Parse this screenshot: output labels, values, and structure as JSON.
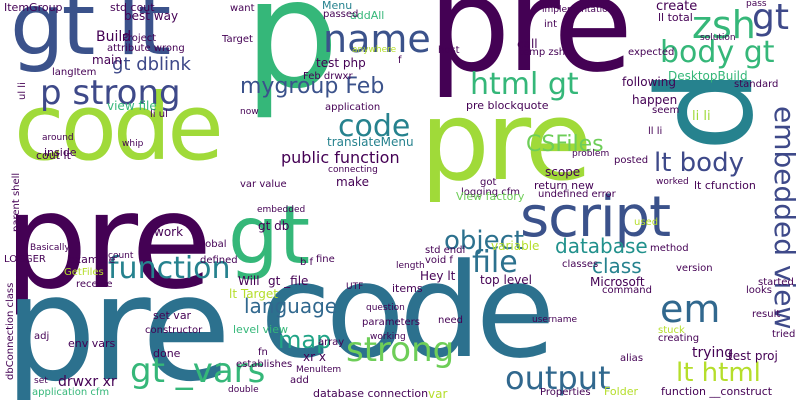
{
  "words": [
    {
      "text": "pre",
      "color": "#440154"
    },
    {
      "text": "code",
      "color": "#a0da39"
    },
    {
      "text": "pre",
      "color": "#a0da39"
    },
    {
      "text": "code",
      "color": "#2c718e"
    },
    {
      "text": "p",
      "color": "#35b779"
    },
    {
      "text": "p",
      "color": "#26828e"
    },
    {
      "text": "pre",
      "color": "#440154"
    },
    {
      "text": "pre",
      "color": "#2c718e"
    },
    {
      "text": "gt lt",
      "color": "#3b528b"
    },
    {
      "text": "gt",
      "color": "#35b779"
    },
    {
      "text": "name",
      "color": "#3b528b"
    },
    {
      "text": "zsh",
      "color": "#35b779"
    },
    {
      "text": "gt",
      "color": "#3e4989"
    },
    {
      "text": "script",
      "color": "#3b528b"
    },
    {
      "text": "code",
      "color": "#26828e"
    },
    {
      "text": "p strong",
      "color": "#3e4989"
    },
    {
      "text": "body gt",
      "color": "#35b779"
    },
    {
      "text": "html gt",
      "color": "#35b779"
    },
    {
      "text": "embedded view",
      "color": "#3e4989"
    },
    {
      "text": "lt body",
      "color": "#3e4989"
    },
    {
      "text": "strong",
      "color": "#6ece58"
    },
    {
      "text": "gt _vars",
      "color": "#35b779"
    },
    {
      "text": "em",
      "color": "#31688e"
    },
    {
      "text": "file",
      "color": "#2c718e"
    },
    {
      "text": "function",
      "color": "#26828e"
    },
    {
      "text": "object",
      "color": "#2c718e"
    },
    {
      "text": "output",
      "color": "#31688e"
    },
    {
      "text": "lt html",
      "color": "#b5de2b"
    },
    {
      "text": "CSFiles",
      "color": "#6ece58"
    },
    {
      "text": "mygroup Feb",
      "color": "#3b528b"
    },
    {
      "text": "map",
      "color": "#20a486"
    },
    {
      "text": "language",
      "color": "#31688e"
    },
    {
      "text": "database",
      "color": "#21918c"
    },
    {
      "text": "public function",
      "color": "#440154"
    },
    {
      "text": "class",
      "color": "#26828e"
    },
    {
      "text": "gt dblink",
      "color": "#3e4989"
    },
    {
      "text": "ItemGroup",
      "color": "#440154"
    },
    {
      "text": "best way",
      "color": "#440154"
    },
    {
      "text": "Build",
      "color": "#440154"
    },
    {
      "text": "main",
      "color": "#440154"
    },
    {
      "text": "test php",
      "color": "#440154"
    },
    {
      "text": "Menu",
      "color": "#26828e"
    },
    {
      "text": "create",
      "color": "#440154"
    },
    {
      "text": "ll total",
      "color": "#440154"
    },
    {
      "text": "translateMenu",
      "color": "#26828e"
    },
    {
      "text": "scope",
      "color": "#440154"
    },
    {
      "text": "make",
      "color": "#440154"
    },
    {
      "text": "Will",
      "color": "#440154"
    },
    {
      "text": "gt _file",
      "color": "#440154"
    },
    {
      "text": "lt Target",
      "color": "#b5de2b"
    },
    {
      "text": "level view",
      "color": "#35b779"
    },
    {
      "text": "set var",
      "color": "#440154"
    },
    {
      "text": "env vars",
      "color": "#440154"
    },
    {
      "text": "drwxr xr",
      "color": "#440154"
    },
    {
      "text": "trying",
      "color": "#440154"
    },
    {
      "text": "test proj",
      "color": "#440154"
    },
    {
      "text": "variable",
      "color": "#b5de2b"
    },
    {
      "text": "Hey lt",
      "color": "#440154"
    },
    {
      "text": "top level",
      "color": "#440154"
    },
    {
      "text": "items",
      "color": "#440154"
    },
    {
      "text": "return new",
      "color": "#440154"
    },
    {
      "text": "pre blockquote",
      "color": "#440154"
    },
    {
      "text": "application",
      "color": "#440154"
    },
    {
      "text": "view file",
      "color": "#35b779"
    },
    {
      "text": "happen",
      "color": "#440154"
    },
    {
      "text": "following",
      "color": "#440154"
    },
    {
      "text": "DesktopBuild",
      "color": "#35b779"
    },
    {
      "text": "li li",
      "color": "#a0da39"
    },
    {
      "text": "lt cfunction",
      "color": "#440154"
    },
    {
      "text": "function __construct",
      "color": "#440154"
    },
    {
      "text": "database connection",
      "color": "#440154"
    },
    {
      "text": "addAll",
      "color": "#35b779"
    },
    {
      "text": "work",
      "color": "#440154"
    },
    {
      "text": "gt db",
      "color": "#440154"
    },
    {
      "text": "var value",
      "color": "#440154"
    },
    {
      "text": "cout lt",
      "color": "#440154"
    },
    {
      "text": "inside",
      "color": "#440154"
    },
    {
      "text": "example",
      "color": "#440154"
    },
    {
      "text": "LOGGER",
      "color": "#440154"
    },
    {
      "text": "receive",
      "color": "#440154"
    },
    {
      "text": "std cout",
      "color": "#440154"
    },
    {
      "text": "Project",
      "color": "#440154"
    },
    {
      "text": "attribute wrong",
      "color": "#440154"
    },
    {
      "text": "langItem",
      "color": "#440154"
    },
    {
      "text": "Target",
      "color": "#440154"
    },
    {
      "text": "want",
      "color": "#440154"
    },
    {
      "text": "passed",
      "color": "#440154"
    },
    {
      "text": "int",
      "color": "#440154"
    },
    {
      "text": "call",
      "color": "#440154"
    },
    {
      "text": "temp zsh",
      "color": "#440154"
    },
    {
      "text": "expected",
      "color": "#440154"
    },
    {
      "text": "solution",
      "color": "#440154"
    },
    {
      "text": "pass",
      "color": "#440154"
    },
    {
      "text": "logging cfm",
      "color": "#440154"
    },
    {
      "text": "std endl",
      "color": "#440154"
    },
    {
      "text": "void f",
      "color": "#440154"
    },
    {
      "text": "View factory",
      "color": "#6ece58"
    },
    {
      "text": "classes",
      "color": "#440154"
    },
    {
      "text": "method",
      "color": "#440154"
    },
    {
      "text": "version",
      "color": "#440154"
    },
    {
      "text": "started",
      "color": "#440154"
    },
    {
      "text": "looks",
      "color": "#440154"
    },
    {
      "text": "result",
      "color": "#440154"
    },
    {
      "text": "command",
      "color": "#440154"
    },
    {
      "text": "alias",
      "color": "#440154"
    },
    {
      "text": "creating",
      "color": "#440154"
    },
    {
      "text": "tried",
      "color": "#440154"
    },
    {
      "text": "fine",
      "color": "#440154"
    },
    {
      "text": "defined",
      "color": "#440154"
    },
    {
      "text": "global",
      "color": "#440154"
    },
    {
      "text": "Basically",
      "color": "#440154"
    },
    {
      "text": "count",
      "color": "#440154"
    },
    {
      "text": "constructor",
      "color": "#440154"
    },
    {
      "text": "adj",
      "color": "#440154"
    },
    {
      "text": "done",
      "color": "#440154"
    },
    {
      "text": "fn",
      "color": "#440154"
    },
    {
      "text": "establishes",
      "color": "#440154"
    },
    {
      "text": "xr x",
      "color": "#440154"
    },
    {
      "text": "MenuItem",
      "color": "#440154"
    },
    {
      "text": "add",
      "color": "#440154"
    },
    {
      "text": "double",
      "color": "#440154"
    },
    {
      "text": "application cfm",
      "color": "#35b779"
    },
    {
      "text": "set",
      "color": "#440154"
    },
    {
      "text": "connecting",
      "color": "#440154"
    },
    {
      "text": "undefined error",
      "color": "#440154"
    },
    {
      "text": "posted",
      "color": "#440154"
    },
    {
      "text": "worked",
      "color": "#440154"
    },
    {
      "text": "Microsoft",
      "color": "#440154"
    },
    {
      "text": "need",
      "color": "#440154"
    },
    {
      "text": "parameters",
      "color": "#440154"
    },
    {
      "text": "working",
      "color": "#440154"
    },
    {
      "text": "question",
      "color": "#440154"
    },
    {
      "text": "Properties",
      "color": "#440154"
    },
    {
      "text": "Folder",
      "color": "#b5de2b"
    },
    {
      "text": "stuck",
      "color": "#b5de2b"
    },
    {
      "text": "used",
      "color": "#b5de2b"
    },
    {
      "text": "GetFiles",
      "color": "#b5de2b"
    },
    {
      "text": "standard",
      "color": "#440154"
    },
    {
      "text": "seem",
      "color": "#440154"
    },
    {
      "text": "ll li",
      "color": "#440154"
    },
    {
      "text": "problem",
      "color": "#440154"
    },
    {
      "text": "got",
      "color": "#440154"
    },
    {
      "text": "Feb drwxr",
      "color": "#440154"
    },
    {
      "text": "implementation",
      "color": "#440154"
    },
    {
      "text": "username",
      "color": "#440154"
    },
    {
      "text": "host",
      "color": "#440154"
    },
    {
      "text": "anywhere",
      "color": "#b5de2b"
    },
    {
      "text": "around",
      "color": "#440154"
    },
    {
      "text": "whip",
      "color": "#440154"
    },
    {
      "text": "ul li",
      "color": "#440154"
    },
    {
      "text": "li ul",
      "color": "#440154"
    },
    {
      "text": "parent shell",
      "color": "#440154"
    },
    {
      "text": "dbConnection class",
      "color": "#440154"
    },
    {
      "text": "length",
      "color": "#440154"
    },
    {
      "text": "UTF",
      "color": "#440154"
    },
    {
      "text": "b f",
      "color": "#440154"
    },
    {
      "text": "array",
      "color": "#440154"
    },
    {
      "text": "embedded",
      "color": "#440154"
    },
    {
      "text": "var",
      "color": "#b5de2b"
    },
    {
      "text": "now",
      "color": "#440154"
    },
    {
      "text": "f",
      "color": "#440154"
    }
  ]
}
